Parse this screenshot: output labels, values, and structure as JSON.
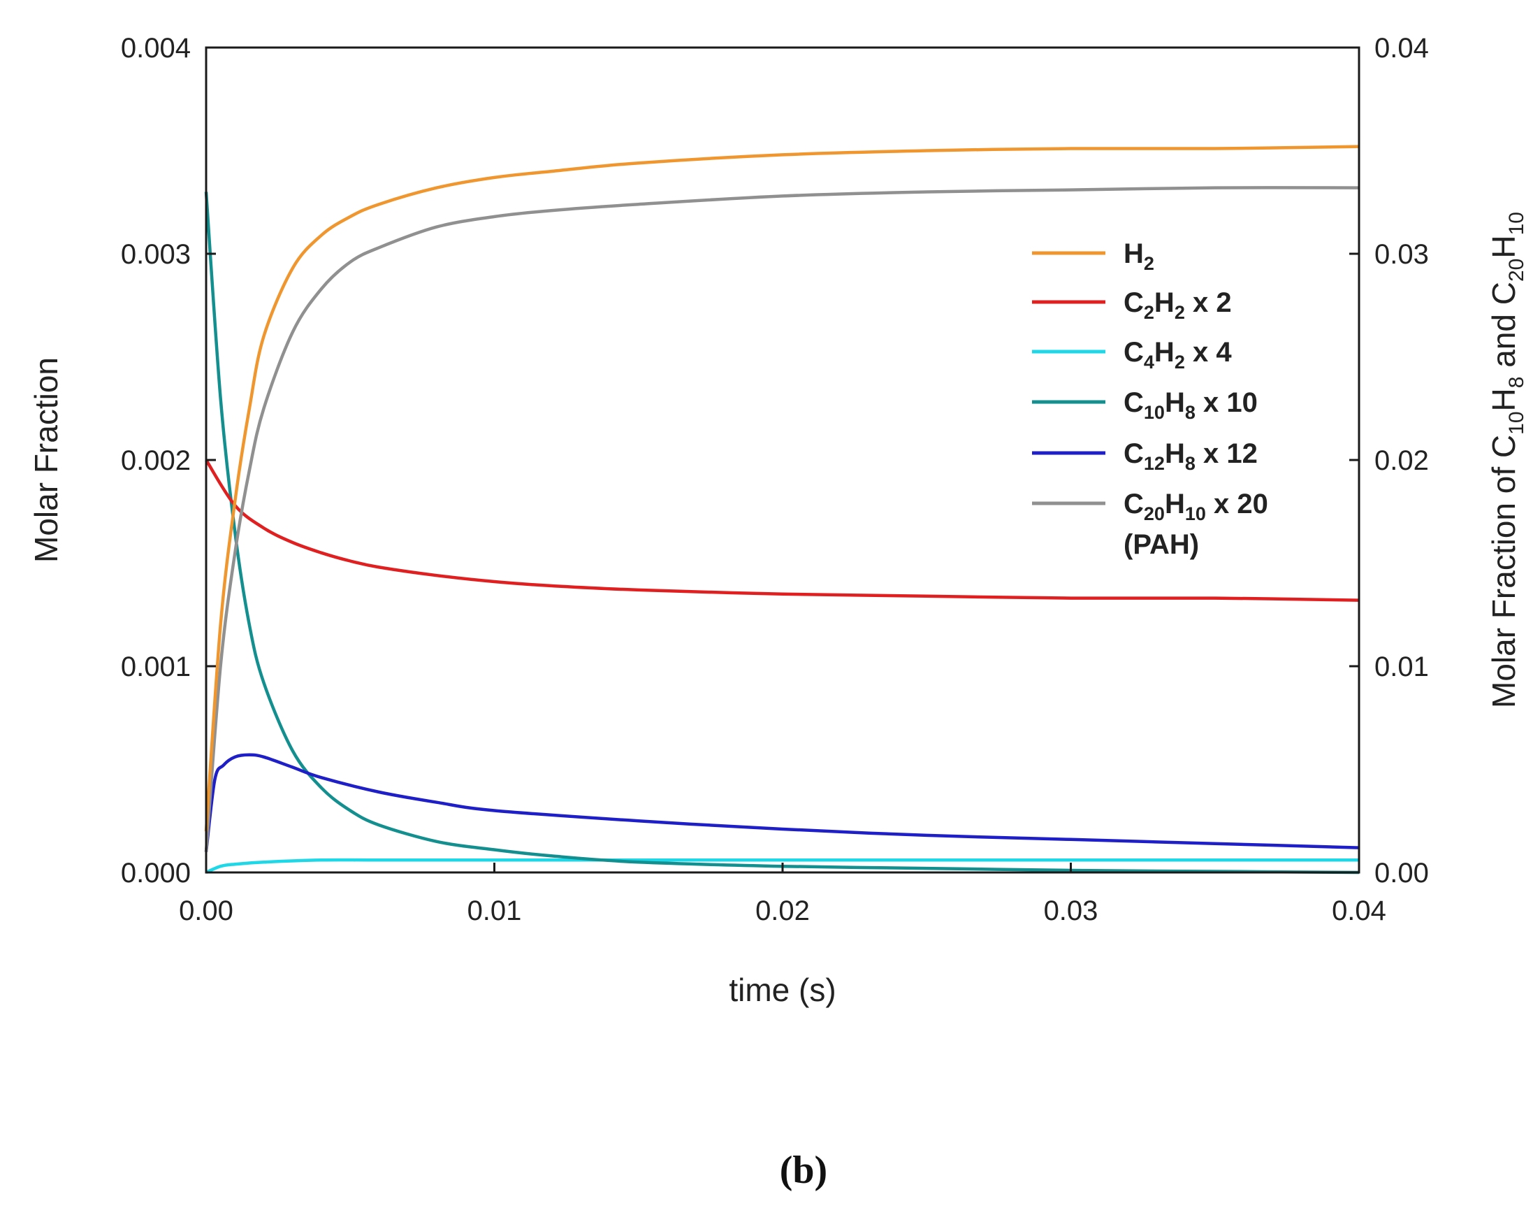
{
  "panel_label": "(b)",
  "colors": {
    "frame": "#1a1a1a",
    "H2": "#f0962e",
    "C2H2": "#e02020",
    "C4H2": "#1ed8e8",
    "C10H8": "#138f8f",
    "C12H8": "#1f1fc8",
    "C20H10": "#909090"
  },
  "chart_data": {
    "type": "line",
    "title": "",
    "xlabel": "time (s)",
    "ylabel": "Molar Fraction",
    "ylabel_right": {
      "prefix": "Molar Fraction of C",
      "s1": "10",
      "mid": "H",
      "s2": "8",
      "and": " and C",
      "s3": "20",
      "mid2": "H",
      "s4": "10"
    },
    "xlim": [
      0,
      0.04
    ],
    "ylim": [
      0,
      0.004
    ],
    "ylim_right": [
      0,
      0.04
    ],
    "x_ticks": [
      "0.00",
      "0.01",
      "0.02",
      "0.03",
      "0.04"
    ],
    "y_ticks": [
      "0.000",
      "0.001",
      "0.002",
      "0.003",
      "0.004"
    ],
    "y_ticks_right": [
      "0.00",
      "0.01",
      "0.02",
      "0.03",
      "0.04"
    ],
    "legend_position": "right-upper",
    "series": [
      {
        "key": "H2",
        "name": "H2 (left axis)",
        "legend": {
          "a": "H",
          "s1": "2",
          "b": "",
          "s2": "",
          "suffix": ""
        },
        "x": [
          0,
          0.0005,
          0.001,
          0.0015,
          0.002,
          0.003,
          0.004,
          0.005,
          0.006,
          0.008,
          0.01,
          0.012,
          0.015,
          0.02,
          0.025,
          0.03,
          0.035,
          0.04
        ],
        "y": [
          0.0002,
          0.0012,
          0.0018,
          0.00225,
          0.0026,
          0.00293,
          0.00309,
          0.00318,
          0.00324,
          0.00332,
          0.00337,
          0.0034,
          0.00344,
          0.00348,
          0.0035,
          0.00351,
          0.00351,
          0.00352
        ]
      },
      {
        "key": "C2H2",
        "name": "C2H2 x 2 (left axis)",
        "legend": {
          "a": "C",
          "s1": "2",
          "b": "H",
          "s2": "2",
          "suffix": " x 2"
        },
        "x": [
          0,
          0.001,
          0.002,
          0.003,
          0.004,
          0.005,
          0.006,
          0.008,
          0.01,
          0.012,
          0.015,
          0.02,
          0.025,
          0.03,
          0.035,
          0.04
        ],
        "y": [
          0.002,
          0.00178,
          0.00167,
          0.0016,
          0.00155,
          0.00151,
          0.00148,
          0.00144,
          0.00141,
          0.00139,
          0.00137,
          0.00135,
          0.00134,
          0.00133,
          0.00133,
          0.00132
        ]
      },
      {
        "key": "C4H2",
        "name": "C4H2 x 4 (left axis)",
        "legend": {
          "a": "C",
          "s1": "4",
          "b": "H",
          "s2": "2",
          "suffix": " x 4"
        },
        "x": [
          0,
          0.0005,
          0.001,
          0.002,
          0.004,
          0.006,
          0.01,
          0.015,
          0.02,
          0.03,
          0.04
        ],
        "y": [
          0.0,
          3e-05,
          4e-05,
          5e-05,
          6e-05,
          6e-05,
          6e-05,
          6e-05,
          6e-05,
          6e-05,
          6e-05
        ]
      },
      {
        "key": "C10H8",
        "name": "C10H8 x 10 (right axis)",
        "legend": {
          "a": "C",
          "s1": "10",
          "b": "H",
          "s2": "8",
          "suffix": " x 10"
        },
        "x": [
          0,
          0.0005,
          0.001,
          0.0015,
          0.002,
          0.003,
          0.004,
          0.005,
          0.006,
          0.008,
          0.01,
          0.012,
          0.015,
          0.02,
          0.025,
          0.03,
          0.035,
          0.04
        ],
        "y": [
          0.033,
          0.023,
          0.0165,
          0.012,
          0.0092,
          0.0059,
          0.0041,
          0.003,
          0.0023,
          0.0015,
          0.0011,
          0.0008,
          0.0005,
          0.0003,
          0.0002,
          0.0001,
          5e-05,
          0.0
        ]
      },
      {
        "key": "C12H8",
        "name": "C12H8 x 12 (left axis)",
        "legend": {
          "a": "C",
          "s1": "12",
          "b": "H",
          "s2": "8",
          "suffix": " x 12"
        },
        "x": [
          0,
          0.0003,
          0.0006,
          0.001,
          0.0015,
          0.002,
          0.003,
          0.004,
          0.006,
          0.008,
          0.01,
          0.015,
          0.02,
          0.025,
          0.03,
          0.035,
          0.04
        ],
        "y": [
          0.0001,
          0.00045,
          0.00052,
          0.00056,
          0.00057,
          0.00056,
          0.00051,
          0.00046,
          0.00039,
          0.00034,
          0.0003,
          0.00025,
          0.00021,
          0.00018,
          0.00016,
          0.00014,
          0.00012
        ]
      },
      {
        "key": "C20H10",
        "name": "C20H10 x 20 (PAH) (right axis)",
        "legend": {
          "a": "C",
          "s1": "20",
          "b": "H",
          "s2": "10",
          "suffix": " x 20",
          "line2": "(PAH)"
        },
        "x": [
          0,
          0.0005,
          0.001,
          0.0015,
          0.002,
          0.003,
          0.004,
          0.005,
          0.006,
          0.008,
          0.01,
          0.012,
          0.015,
          0.02,
          0.025,
          0.03,
          0.035,
          0.04
        ],
        "y": [
          0.001,
          0.01,
          0.0155,
          0.0195,
          0.0225,
          0.0262,
          0.0283,
          0.0296,
          0.0303,
          0.0313,
          0.0318,
          0.0321,
          0.0324,
          0.0328,
          0.033,
          0.0331,
          0.0332,
          0.0332
        ]
      }
    ]
  }
}
